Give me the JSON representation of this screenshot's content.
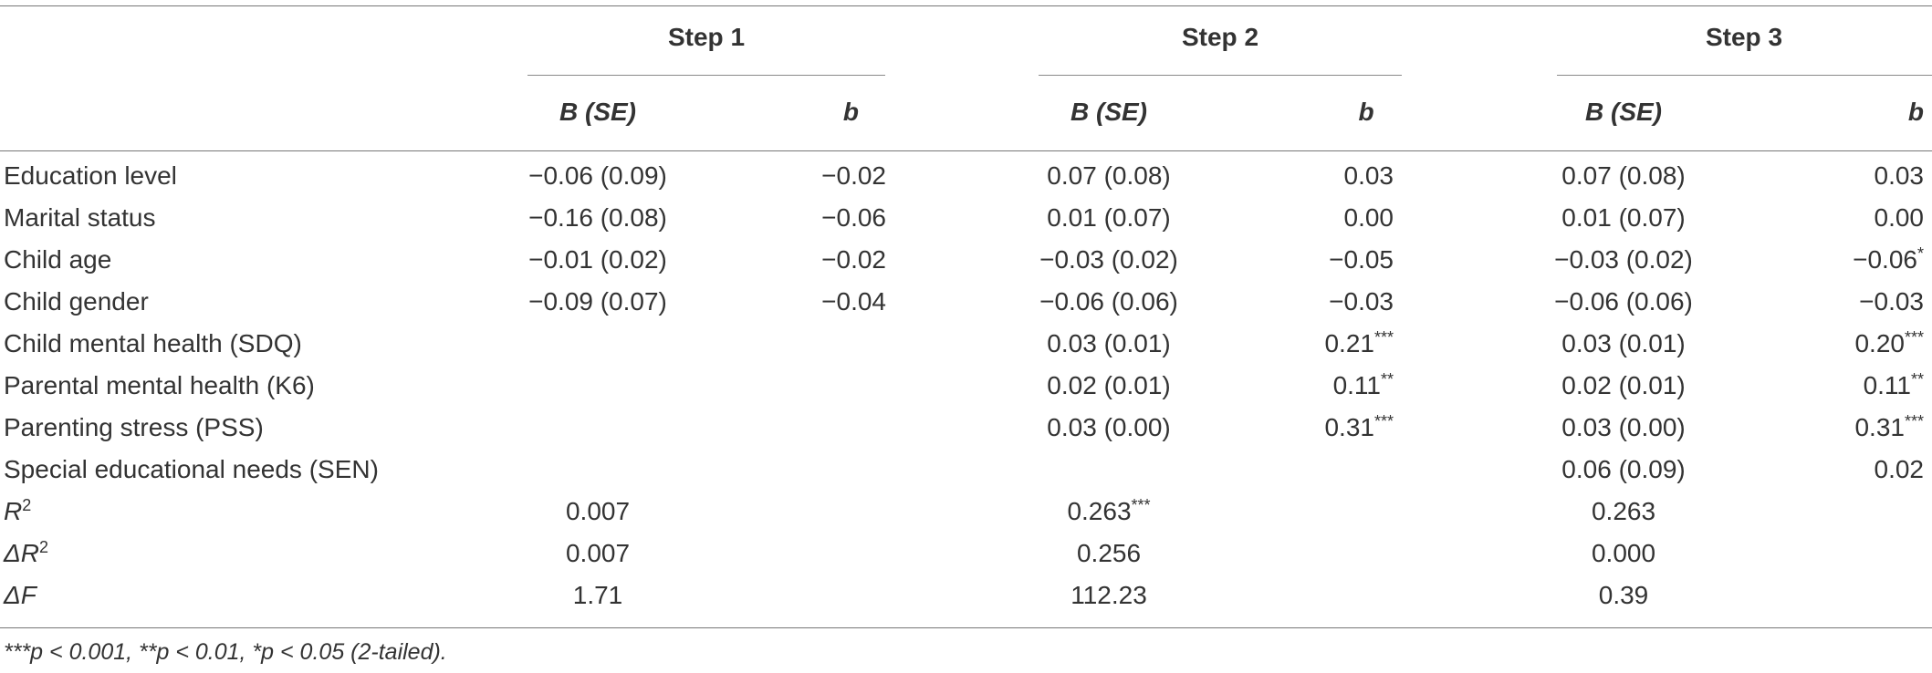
{
  "headers": {
    "step1": "Step 1",
    "step2": "Step 2",
    "step3": "Step 3",
    "bse": "B (SE)",
    "b": "b"
  },
  "rows": [
    {
      "label": "Education level",
      "s1_bse": "−0.06 (0.09)",
      "s1_b": "−0.02",
      "s2_bse": "0.07 (0.08)",
      "s2_b": "0.03",
      "s3_bse": "0.07 (0.08)",
      "s3_b": "0.03"
    },
    {
      "label": "Marital status",
      "s1_bse": "−0.16 (0.08)",
      "s1_b": "−0.06",
      "s2_bse": "0.01 (0.07)",
      "s2_b": "0.00",
      "s3_bse": "0.01 (0.07)",
      "s3_b": "0.00"
    },
    {
      "label": "Child age",
      "s1_bse": "−0.01 (0.02)",
      "s1_b": "−0.02",
      "s2_bse": "−0.03 (0.02)",
      "s2_b": "−0.05",
      "s3_bse": "−0.03 (0.02)",
      "s3_b": "−0.06*"
    },
    {
      "label": "Child gender",
      "s1_bse": "−0.09 (0.07)",
      "s1_b": "−0.04",
      "s2_bse": "−0.06 (0.06)",
      "s2_b": "−0.03",
      "s3_bse": "−0.06 (0.06)",
      "s3_b": "−0.03"
    },
    {
      "label": "Child mental health (SDQ)",
      "s1_bse": "",
      "s1_b": "",
      "s2_bse": "0.03 (0.01)",
      "s2_b": "0.21***",
      "s3_bse": "0.03 (0.01)",
      "s3_b": "0.20***"
    },
    {
      "label": "Parental mental health (K6)",
      "s1_bse": "",
      "s1_b": "",
      "s2_bse": "0.02 (0.01)",
      "s2_b": "0.11**",
      "s3_bse": "0.02 (0.01)",
      "s3_b": "0.11**"
    },
    {
      "label": "Parenting stress (PSS)",
      "s1_bse": "",
      "s1_b": "",
      "s2_bse": "0.03 (0.00)",
      "s2_b": "0.31***",
      "s3_bse": "0.03 (0.00)",
      "s3_b": "0.31***"
    },
    {
      "label": "Special educational needs (SEN)",
      "s1_bse": "",
      "s1_b": "",
      "s2_bse": "",
      "s2_b": "",
      "s3_bse": "0.06 (0.09)",
      "s3_b": "0.02"
    }
  ],
  "stats": [
    {
      "label_pre": "R",
      "label_sup": "2",
      "s1": "0.007",
      "s2": "0.263***",
      "s3": "0.263"
    },
    {
      "label_pre": "ΔR",
      "label_sup": "2",
      "s1": "0.007",
      "s2": "0.256",
      "s3": "0.000"
    },
    {
      "label_pre": "ΔF",
      "label_sup": "",
      "s1": "1.71",
      "s2": "112.23",
      "s3": "0.39"
    }
  ],
  "footnote": "***p < 0.001, **p < 0.01, *p < 0.05 (2-tailed)."
}
